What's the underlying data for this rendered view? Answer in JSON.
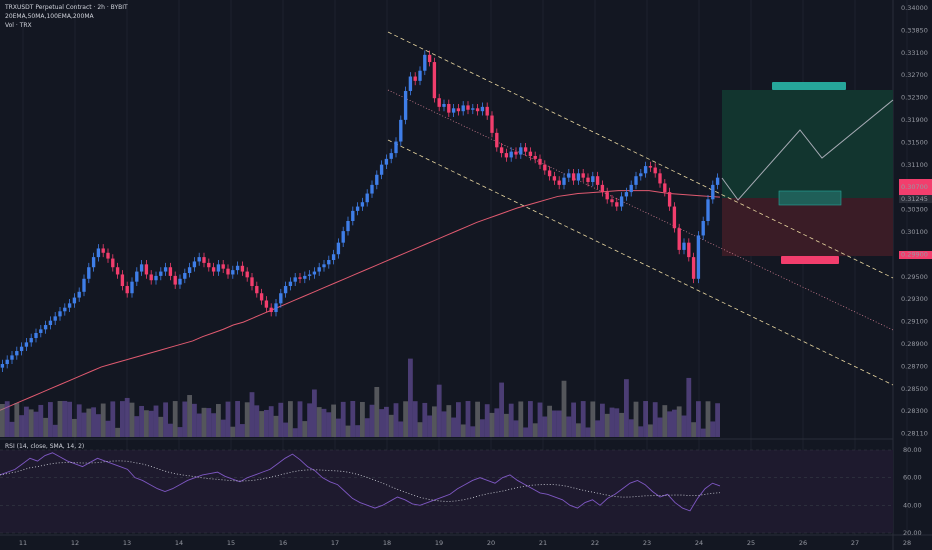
{
  "header": {
    "title": "TRXUSDT Perpetual Contract · 2h · BYBIT",
    "indicators": "20EMA,50MA,100EMA,200MA",
    "volume": "Vol · TRX"
  },
  "rsi_panel": {
    "label": "RSI (14, close, SMA, 14, 2)",
    "levels": [
      80.0,
      60.0,
      40.0,
      20.0
    ]
  },
  "price_labels": {
    "current": "0.31245",
    "target_tag": "",
    "stop_tag": ""
  },
  "colors": {
    "background": "#131722",
    "up": "#3f7ee8",
    "down": "#f23e6d",
    "ema": "#e05a70",
    "channel": "#e8d6a0",
    "volume": "#7a5cb8",
    "rsi_line": "#7e57c2",
    "target_zone": "#12352f",
    "stop_zone": "#3a1c26",
    "target_label": "#26a69a",
    "stop_label": "#f23e6d"
  },
  "chart_data": {
    "type": "candlestick",
    "ylim": [
      0.2811,
      0.3409
    ],
    "yticks": [
      "0.34000",
      "0.33850",
      "0.33100",
      "0.32700",
      "0.32300",
      "0.31900",
      "0.31500",
      "0.31100",
      "0.30700",
      "0.30300",
      "0.30100",
      "0.29900",
      "0.29500",
      "0.29300",
      "0.29100",
      "0.28900",
      "0.28700",
      "0.28500",
      "0.28300",
      "0.28110"
    ],
    "xticks": [
      "11",
      "12",
      "13",
      "14",
      "15",
      "16",
      "17",
      "18",
      "19",
      "20",
      "21",
      "22",
      "23",
      "24",
      "25",
      "26",
      "27",
      "28"
    ],
    "closes": [
      0.2912,
      0.2918,
      0.2924,
      0.293,
      0.2936,
      0.2942,
      0.2948,
      0.2955,
      0.296,
      0.2966,
      0.2972,
      0.2978,
      0.2985,
      0.299,
      0.2996,
      0.3004,
      0.3012,
      0.303,
      0.3046,
      0.306,
      0.3072,
      0.3066,
      0.3058,
      0.3046,
      0.3036,
      0.302,
      0.301,
      0.3026,
      0.304,
      0.305,
      0.3036,
      0.3028,
      0.3034,
      0.304,
      0.3046,
      0.3034,
      0.3022,
      0.303,
      0.3038,
      0.3046,
      0.3054,
      0.306,
      0.3052,
      0.3046,
      0.304,
      0.305,
      0.3044,
      0.3036,
      0.3042,
      0.3048,
      0.304,
      0.3032,
      0.302,
      0.301,
      0.3,
      0.299,
      0.2984,
      0.2996,
      0.301,
      0.302,
      0.3026,
      0.3032,
      0.303,
      0.3034,
      0.3036,
      0.304,
      0.3046,
      0.305,
      0.3056,
      0.3064,
      0.308,
      0.3096,
      0.311,
      0.3124,
      0.313,
      0.3136,
      0.3148,
      0.316,
      0.3174,
      0.3188,
      0.3196,
      0.3204,
      0.322,
      0.325,
      0.329,
      0.331,
      0.3304,
      0.3318,
      0.334,
      0.333,
      0.328,
      0.3268,
      0.3272,
      0.326,
      0.3266,
      0.3262,
      0.327,
      0.3264,
      0.3266,
      0.3262,
      0.3268,
      0.3256,
      0.3232,
      0.3212,
      0.3204,
      0.3198,
      0.3206,
      0.3202,
      0.3212,
      0.3206,
      0.32,
      0.3196,
      0.3188,
      0.318,
      0.3172,
      0.3166,
      0.316,
      0.317,
      0.3176,
      0.3166,
      0.3176,
      0.317,
      0.3164,
      0.3172,
      0.316,
      0.315,
      0.314,
      0.3136,
      0.313,
      0.3144,
      0.315,
      0.316,
      0.3172,
      0.3176,
      0.3186,
      0.3184,
      0.3176,
      0.3162,
      0.315,
      0.313,
      0.31,
      0.307,
      0.308,
      0.306,
      0.303,
      0.309,
      0.311,
      0.314,
      0.316,
      0.317
    ],
    "ema": [
      0.2848,
      0.2854,
      0.286,
      0.2866,
      0.2872,
      0.2878,
      0.2884,
      0.289,
      0.2896,
      0.2902,
      0.2908,
      0.2912,
      0.2916,
      0.292,
      0.2924,
      0.2928,
      0.2932,
      0.2936,
      0.294,
      0.2944,
      0.295,
      0.2955,
      0.296,
      0.2966,
      0.297,
      0.2976,
      0.2982,
      0.2988,
      0.2994,
      0.3,
      0.3006,
      0.3012,
      0.3018,
      0.3024,
      0.303,
      0.3036,
      0.3042,
      0.3048,
      0.3054,
      0.306,
      0.3066,
      0.3072,
      0.3078,
      0.3084,
      0.309,
      0.3096,
      0.3102,
      0.3108,
      0.3113,
      0.3118,
      0.3123,
      0.3128,
      0.3132,
      0.3136,
      0.314,
      0.3144,
      0.3146,
      0.3148,
      0.3149,
      0.315,
      0.3151,
      0.3152,
      0.3152,
      0.3152,
      0.3152,
      0.315,
      0.3148,
      0.3147,
      0.3146,
      0.3145,
      0.3144,
      0.3143
    ],
    "channel_upper": [
      [
        0.337,
        0.3148
      ]
    ],
    "channel_lower": [
      [
        0.318,
        0.296
      ]
    ],
    "channel_mid": [
      [
        0.327,
        0.294
      ]
    ],
    "rsi": [
      62,
      64,
      66,
      70,
      74,
      72,
      76,
      78,
      75,
      72,
      70,
      68,
      71,
      74,
      72,
      70,
      68,
      66,
      60,
      58,
      55,
      52,
      50,
      52,
      55,
      58,
      60,
      62,
      63,
      64,
      61,
      59,
      57,
      60,
      62,
      64,
      66,
      70,
      74,
      77,
      73,
      68,
      65,
      60,
      57,
      55,
      50,
      45,
      42,
      40,
      38,
      40,
      43,
      46,
      44,
      41,
      40,
      42,
      44,
      46,
      48,
      52,
      55,
      58,
      60,
      58,
      56,
      60,
      62,
      58,
      55,
      52,
      49,
      48,
      46,
      44,
      40,
      38,
      42,
      44,
      40,
      45,
      48,
      52,
      56,
      58,
      55,
      50,
      46,
      48,
      42,
      38,
      36,
      45,
      52,
      56,
      54
    ]
  }
}
